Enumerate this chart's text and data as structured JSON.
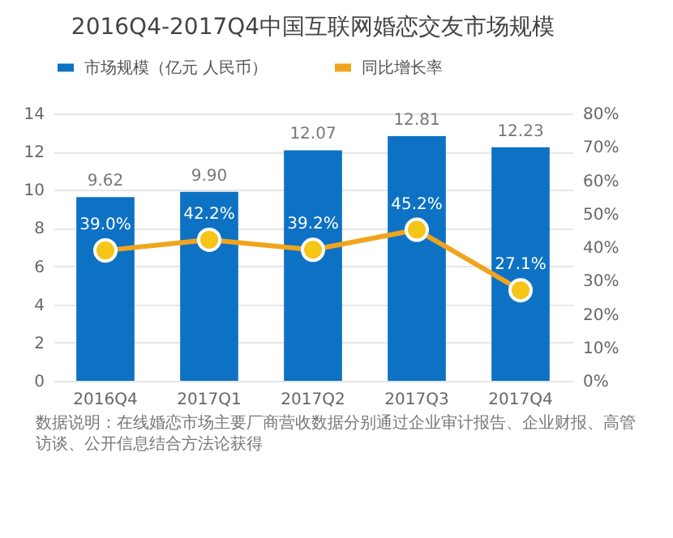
{
  "chart_data": {
    "type": "bar",
    "title": "2016Q4-2017Q4中国互联网婚恋交友市场规模",
    "categories": [
      "2016Q4",
      "2017Q1",
      "2017Q2",
      "2017Q3",
      "2017Q4"
    ],
    "series": [
      {
        "name": "市场规模（亿元 人民币）",
        "type": "bar",
        "color": "#0e72c4",
        "values": [
          9.62,
          9.9,
          12.07,
          12.81,
          12.23
        ],
        "value_labels": [
          "9.62",
          "9.90",
          "12.07",
          "12.81",
          "12.23"
        ]
      },
      {
        "name": "同比增长率",
        "type": "line",
        "axis": "y2",
        "color": "#f0a41e",
        "values": [
          39.0,
          42.2,
          39.2,
          45.2,
          27.1
        ],
        "value_labels": [
          "39.0%",
          "42.2%",
          "39.2%",
          "45.2%",
          "27.1%"
        ]
      }
    ],
    "ylim": [
      0,
      14
    ],
    "yticks": [
      0,
      2,
      4,
      6,
      8,
      10,
      12,
      14
    ],
    "y2lim": [
      0,
      80
    ],
    "y2ticks": [
      {
        "value": 0,
        "label": "0%"
      },
      {
        "value": 10,
        "label": "10%"
      },
      {
        "value": 20,
        "label": "20%"
      },
      {
        "value": 30,
        "label": "30%"
      },
      {
        "value": 40,
        "label": "40%"
      },
      {
        "value": 50,
        "label": "50%"
      },
      {
        "value": 60,
        "label": "60%"
      },
      {
        "value": 70,
        "label": "70%"
      },
      {
        "value": 80,
        "label": "80%"
      }
    ],
    "grid": "y",
    "legend": "top",
    "marker": "circle",
    "annotations": [
      "数据说明：在线婚恋市场主要厂商营收数据分别通过企业审计报告、企业财报、高管访谈、公开信息结合方法论获得"
    ]
  }
}
